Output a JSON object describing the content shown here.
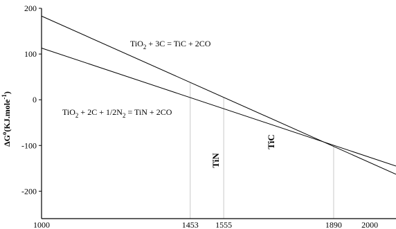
{
  "chart_data": {
    "type": "line",
    "xlim": [
      1000,
      2080
    ],
    "ylim": [
      -260,
      200
    ],
    "x_ticks": [
      "1000",
      "1453",
      "1555",
      "1890",
      "2000"
    ],
    "y_ticks": [
      "200",
      "100",
      "0",
      "-100",
      "-200"
    ],
    "ylabel": {
      "main": "ΔG",
      "sup": "o",
      "rest": "KJ.mole",
      "sup2": "-1",
      "close": ")"
    },
    "series": [
      {
        "equation": {
          "a": "TiO",
          "a_sub": "2",
          "b": " + 3C = TiC + 2CO"
        },
        "x": [
          1000,
          2080
        ],
        "y": [
          183,
          -163
        ]
      },
      {
        "equation": {
          "a": "TiO",
          "a_sub": "2",
          "b": " + 2C + 1/2N",
          "b_sub": "2",
          "c": " = TiN + 2CO"
        },
        "x": [
          1000,
          2080
        ],
        "y": [
          113,
          -145
        ]
      }
    ],
    "vlines": [
      1453,
      1555,
      1890
    ],
    "region_labels": [
      "TiN",
      "TiC"
    ]
  }
}
